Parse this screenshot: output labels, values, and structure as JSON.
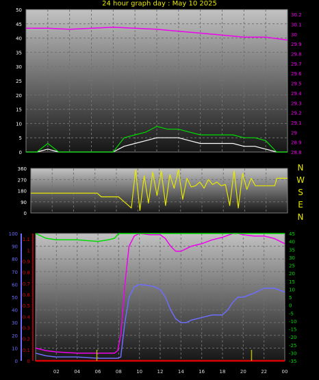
{
  "page_title": "24 hour graph day : May 10 2025",
  "colors": {
    "wind_avg": "#ffffff",
    "wind_gust": "#00dd00",
    "pressure": "#ee00ee",
    "direction": "#e8e800",
    "humidity": "#6d6dff",
    "temperature": "#ee00ee",
    "dewpoint": "#00dd00",
    "solar_uv": "#dd0000",
    "rain": "#b8b800",
    "left_axis": "#ffffff",
    "pressure_axis": "#ee00ee",
    "humidity_axis": "#6d6dff",
    "rain_axis": "#dd0000",
    "temp_axis": "#00dd00"
  },
  "compass": {
    "labels": [
      "N",
      "W",
      "S",
      "E",
      "N"
    ]
  },
  "chart_data": [
    {
      "id": "wind-pressure",
      "type": "line",
      "x_ticks": [
        "02",
        "04",
        "06",
        "08",
        "10",
        "12",
        "14",
        "16",
        "18",
        "20",
        "22",
        "00"
      ],
      "grid": true,
      "y_left": {
        "range": [
          0,
          50
        ],
        "ticks": [
          "0",
          "5",
          "10",
          "15",
          "20",
          "25",
          "30",
          "35",
          "40",
          "45",
          "50"
        ]
      },
      "y_right": {
        "range": [
          28.8,
          30.25
        ],
        "ticks": [
          "28.8",
          "28.9",
          "29",
          "29.1",
          "29.2",
          "29.3",
          "29.4",
          "29.5",
          "29.6",
          "29.7",
          "29.8",
          "29.9",
          "30",
          "30.1",
          "30.2"
        ]
      },
      "series": [
        {
          "key": "pressure",
          "axis": "right",
          "x": [
            0,
            2,
            4,
            6,
            8,
            10,
            12,
            14,
            16,
            18,
            20,
            22,
            24
          ],
          "values": [
            30.06,
            30.06,
            30.05,
            30.06,
            30.07,
            30.06,
            30.05,
            30.03,
            30.01,
            29.99,
            29.97,
            29.97,
            29.94
          ]
        },
        {
          "key": "wind_avg",
          "axis": "left",
          "x": [
            0,
            1,
            2,
            3,
            4,
            5,
            6,
            7,
            8,
            9,
            10,
            11,
            12,
            13,
            14,
            15,
            16,
            17,
            18,
            19,
            20,
            21,
            22,
            23,
            24
          ],
          "values": [
            0,
            0,
            1,
            0,
            0,
            0,
            0,
            0,
            0,
            2,
            3,
            4,
            5,
            5,
            5,
            4,
            3,
            3,
            3,
            3,
            2,
            2,
            1,
            0,
            0
          ]
        },
        {
          "key": "wind_gust",
          "axis": "left",
          "x": [
            0,
            1,
            2,
            3,
            4,
            5,
            6,
            7,
            8,
            9,
            10,
            11,
            12,
            13,
            14,
            15,
            16,
            17,
            18,
            19,
            20,
            21,
            22,
            23,
            24
          ],
          "values": [
            0,
            0,
            3,
            0,
            0,
            0,
            0,
            0,
            0,
            5,
            6,
            7,
            9,
            8,
            8,
            7,
            6,
            6,
            6,
            6,
            5,
            5,
            4,
            0,
            0
          ]
        }
      ]
    },
    {
      "id": "wind-direction",
      "type": "line",
      "grid": true,
      "y_left": {
        "range": [
          0,
          360
        ],
        "ticks": [
          "0",
          "90",
          "180",
          "270",
          "360"
        ]
      },
      "series": [
        {
          "key": "direction",
          "axis": "left",
          "x": [
            0,
            6.2,
            6.6,
            8.2,
            8.4,
            9.4,
            9.8,
            10.2,
            10.6,
            11.0,
            11.4,
            11.8,
            12.2,
            12.6,
            13.0,
            13.4,
            13.8,
            14.2,
            14.6,
            15.0,
            15.4,
            15.8,
            16.2,
            16.6,
            17.0,
            17.4,
            17.8,
            18.2,
            18.6,
            19.0,
            19.4,
            19.8,
            20.2,
            20.6,
            21.0,
            21.4,
            22.0,
            22.8,
            23.0,
            24
          ],
          "values": [
            160,
            160,
            130,
            130,
            115,
            40,
            350,
            20,
            300,
            80,
            330,
            140,
            340,
            60,
            310,
            200,
            350,
            110,
            280,
            210,
            220,
            250,
            200,
            270,
            230,
            250,
            220,
            230,
            60,
            340,
            40,
            320,
            190,
            280,
            220,
            220,
            220,
            220,
            280,
            280
          ]
        }
      ]
    },
    {
      "id": "humidity-temp",
      "type": "line",
      "x_ticks": [
        "02",
        "04",
        "06",
        "08",
        "10",
        "12",
        "14",
        "16",
        "18",
        "20",
        "22",
        "00"
      ],
      "grid": true,
      "y_hum": {
        "range": [
          0,
          100
        ],
        "ticks": [
          "0",
          "10",
          "20",
          "30",
          "40",
          "50",
          "60",
          "70",
          "80",
          "90",
          "100"
        ]
      },
      "y_rain": {
        "range": [
          0,
          1.15
        ],
        "ticks": [
          "0",
          "0.1",
          "0.2",
          "0.3",
          "0.4",
          "0.5",
          "0.6",
          "0.7",
          "0.8",
          "0.9",
          "1",
          "1.1"
        ]
      },
      "y_temp": {
        "range": [
          -35,
          45
        ],
        "ticks": [
          "-35",
          "-30",
          "-25",
          "-20",
          "-15",
          "-10",
          "-5",
          "0",
          "5",
          "10",
          "15",
          "20",
          "25",
          "30",
          "35",
          "40",
          "45"
        ]
      },
      "series": [
        {
          "key": "humidity",
          "axis": "hum",
          "x": [
            0,
            1,
            2,
            4,
            6,
            7,
            7.6,
            7.9,
            8.2,
            8.6,
            9,
            9.5,
            10,
            11,
            11.5,
            12,
            12.5,
            13,
            13.5,
            14,
            14.5,
            15,
            16,
            17,
            18,
            18.5,
            19,
            19.5,
            20,
            21,
            22,
            23,
            24
          ],
          "values": [
            6,
            4,
            3,
            3,
            2,
            2,
            2,
            2,
            3,
            30,
            50,
            58,
            60,
            59,
            58,
            56,
            50,
            40,
            33,
            30,
            30,
            32,
            34,
            36,
            36,
            40,
            46,
            50,
            50,
            53,
            57,
            57,
            54
          ]
        },
        {
          "key": "temperature",
          "axis": "hum",
          "x": [
            0,
            1,
            2,
            4,
            6,
            7,
            7.6,
            7.9,
            8.2,
            8.6,
            9,
            9.5,
            10,
            11,
            12,
            12.5,
            13,
            13.5,
            14,
            14.5,
            15,
            16,
            17,
            18,
            19,
            19.5,
            20,
            21,
            22,
            23,
            24
          ],
          "values": [
            10,
            8,
            7,
            6,
            6,
            6,
            6,
            8,
            20,
            60,
            90,
            98,
            100,
            99,
            99,
            96,
            90,
            86,
            86,
            88,
            90,
            92,
            95,
            97,
            100,
            100,
            99,
            98,
            98,
            96,
            92
          ]
        },
        {
          "key": "dewpoint",
          "axis": "temp",
          "x": [
            0,
            1,
            2,
            4,
            6,
            7,
            7.6,
            8,
            8.3,
            24
          ],
          "values": [
            45,
            42,
            41,
            41,
            40,
            41,
            42,
            45,
            45,
            45
          ]
        },
        {
          "key": "solar_uv",
          "axis": "rain",
          "x": [
            0,
            24
          ],
          "values": [
            0,
            0
          ]
        },
        {
          "key": "rain",
          "axis": "rain",
          "x": [
            5.9,
            20.8
          ],
          "values": [
            0.05,
            0.05
          ]
        }
      ]
    }
  ]
}
